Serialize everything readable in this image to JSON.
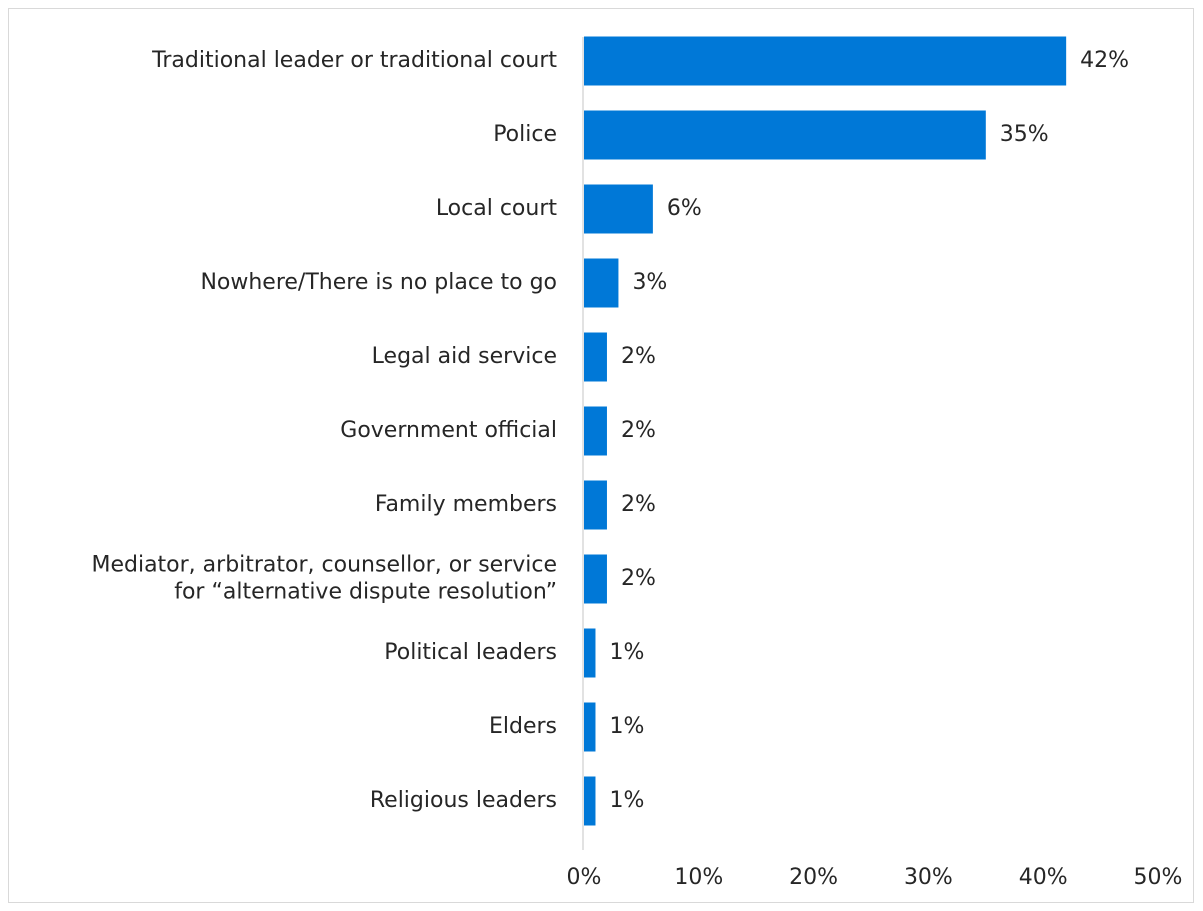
{
  "chart_data": {
    "type": "bar",
    "orientation": "horizontal",
    "categories": [
      [
        "Traditional leader or traditional court"
      ],
      [
        "Police"
      ],
      [
        "Local court"
      ],
      [
        "Nowhere/There is no place to go"
      ],
      [
        "Legal aid service"
      ],
      [
        "Government official"
      ],
      [
        "Family members"
      ],
      [
        "Mediator, arbitrator, counsellor, or service",
        "for “alternative dispute resolution”"
      ],
      [
        "Political leaders"
      ],
      [
        "Elders"
      ],
      [
        "Religious leaders"
      ]
    ],
    "values": [
      42,
      35,
      6,
      3,
      2,
      2,
      2,
      2,
      1,
      1,
      1
    ],
    "value_labels": [
      "42%",
      "35%",
      "6%",
      "3%",
      "2%",
      "2%",
      "2%",
      "2%",
      "1%",
      "1%",
      "1%"
    ],
    "xlim": [
      0,
      50
    ],
    "x_ticks": [
      "0%",
      "10%",
      "20%",
      "30%",
      "40%",
      "50%"
    ],
    "grid": false,
    "bar_color": "#0078d7",
    "axis_color": "#d9d9d9"
  }
}
